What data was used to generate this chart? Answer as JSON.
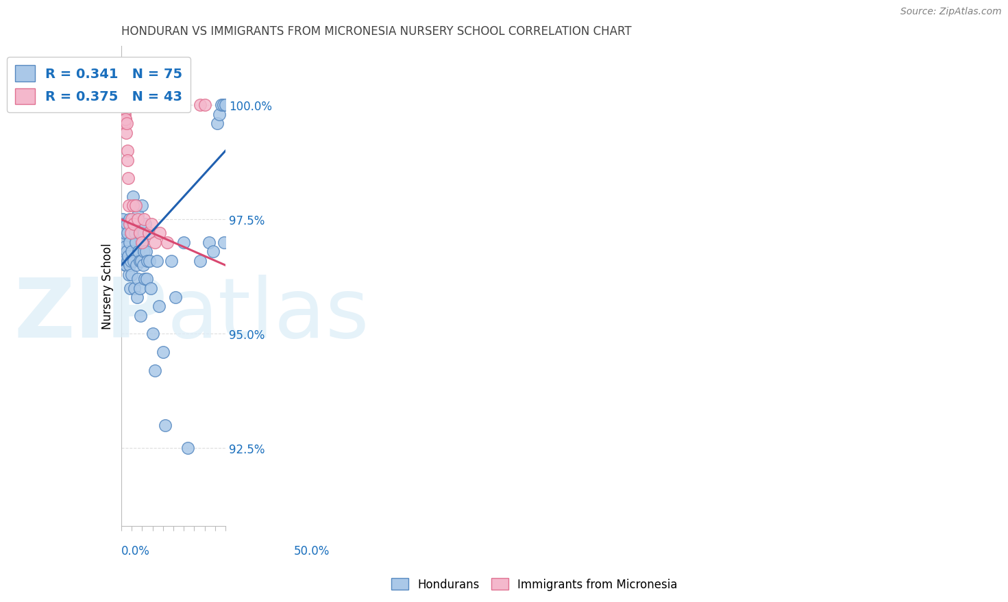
{
  "title": "HONDURAN VS IMMIGRANTS FROM MICRONESIA NURSERY SCHOOL CORRELATION CHART",
  "source": "Source: ZipAtlas.com",
  "ylabel": "Nursery School",
  "ytick_labels": [
    "92.5%",
    "95.0%",
    "97.5%",
    "100.0%"
  ],
  "ytick_values": [
    0.925,
    0.95,
    0.975,
    1.0
  ],
  "xlim": [
    0.0,
    0.5
  ],
  "ylim": [
    0.908,
    1.013
  ],
  "legend_blue_r": "R = 0.341",
  "legend_blue_n": "N = 75",
  "legend_pink_r": "R = 0.375",
  "legend_pink_n": "N = 43",
  "blue_dot_color": "#aac8e8",
  "blue_edge_color": "#5588c0",
  "pink_dot_color": "#f4b8cc",
  "pink_edge_color": "#e07090",
  "blue_line_color": "#2060b0",
  "pink_line_color": "#d84870",
  "legend_text_color": "#1a6fbd",
  "title_color": "#444444",
  "axis_color": "#bbbbbb",
  "grid_color": "#dddddd",
  "blue_x": [
    0.005,
    0.008,
    0.01,
    0.012,
    0.013,
    0.015,
    0.016,
    0.018,
    0.02,
    0.02,
    0.022,
    0.025,
    0.025,
    0.028,
    0.03,
    0.032,
    0.035,
    0.038,
    0.04,
    0.04,
    0.042,
    0.045,
    0.048,
    0.05,
    0.05,
    0.055,
    0.058,
    0.06,
    0.062,
    0.065,
    0.068,
    0.07,
    0.072,
    0.075,
    0.078,
    0.08,
    0.082,
    0.085,
    0.088,
    0.09,
    0.092,
    0.095,
    0.098,
    0.1,
    0.102,
    0.105,
    0.108,
    0.11,
    0.112,
    0.115,
    0.118,
    0.12,
    0.125,
    0.13,
    0.135,
    0.14,
    0.15,
    0.16,
    0.17,
    0.18,
    0.2,
    0.21,
    0.24,
    0.26,
    0.3,
    0.32,
    0.38,
    0.42,
    0.44,
    0.46,
    0.47,
    0.48,
    0.49,
    0.495,
    0.5
  ],
  "blue_y": [
    0.975,
    0.971,
    0.974,
    0.97,
    0.967,
    0.972,
    0.968,
    0.965,
    0.973,
    0.969,
    0.965,
    0.974,
    0.968,
    0.966,
    0.972,
    0.967,
    0.963,
    0.975,
    0.97,
    0.965,
    0.96,
    0.966,
    0.972,
    0.968,
    0.963,
    0.98,
    0.974,
    0.966,
    0.96,
    0.972,
    0.978,
    0.97,
    0.965,
    0.958,
    0.962,
    0.976,
    0.968,
    0.972,
    0.966,
    0.96,
    0.954,
    0.966,
    0.972,
    0.978,
    0.97,
    0.965,
    0.972,
    0.968,
    0.962,
    0.974,
    0.968,
    0.962,
    0.966,
    0.972,
    0.966,
    0.96,
    0.95,
    0.942,
    0.966,
    0.956,
    0.946,
    0.93,
    0.966,
    0.958,
    0.97,
    0.925,
    0.966,
    0.97,
    0.968,
    0.996,
    0.998,
    1.0,
    1.0,
    0.97,
    1.0
  ],
  "pink_x": [
    0.002,
    0.003,
    0.005,
    0.005,
    0.006,
    0.007,
    0.008,
    0.009,
    0.01,
    0.01,
    0.01,
    0.012,
    0.012,
    0.014,
    0.015,
    0.015,
    0.016,
    0.018,
    0.02,
    0.02,
    0.022,
    0.025,
    0.028,
    0.03,
    0.032,
    0.035,
    0.04,
    0.045,
    0.05,
    0.055,
    0.06,
    0.07,
    0.08,
    0.09,
    0.1,
    0.11,
    0.13,
    0.145,
    0.16,
    0.185,
    0.22,
    0.38,
    0.4
  ],
  "pink_y": [
    0.999,
    0.998,
    1.0,
    1.0,
    1.0,
    1.0,
    0.999,
    1.0,
    1.0,
    0.999,
    0.998,
    0.998,
    0.997,
    0.997,
    1.0,
    0.998,
    0.996,
    0.997,
    0.999,
    0.997,
    0.994,
    0.996,
    0.99,
    0.988,
    0.984,
    0.978,
    0.974,
    0.972,
    0.975,
    0.978,
    0.974,
    0.978,
    0.975,
    0.972,
    0.97,
    0.975,
    0.972,
    0.974,
    0.97,
    0.972,
    0.97,
    1.0,
    1.0
  ]
}
